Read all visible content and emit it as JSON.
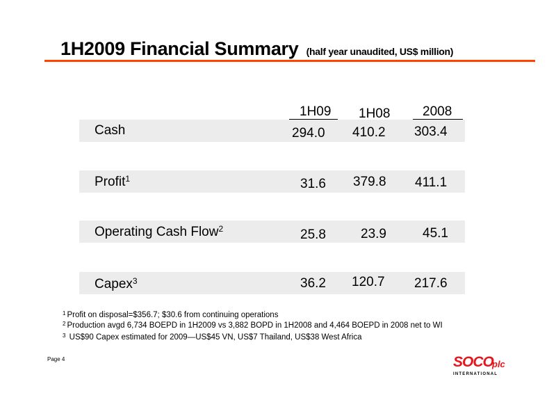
{
  "title": {
    "main": "1H2009 Financial Summary",
    "sub": "(half year unaudited, US$ million)"
  },
  "columns": [
    "1H09",
    "1H08",
    "2008"
  ],
  "rows": [
    {
      "label": "Cash",
      "sup": "",
      "values": [
        "294.0",
        "410.2",
        "303.4"
      ]
    },
    {
      "label": "Profit",
      "sup": "1",
      "values": [
        "31.6",
        "379.8",
        "411.1"
      ]
    },
    {
      "label": "Operating Cash Flow",
      "sup": "2",
      "values": [
        "25.8",
        "23.9",
        "45.1"
      ]
    },
    {
      "label": "Capex",
      "sup": "3",
      "values": [
        "36.2",
        "120.7",
        "217.6"
      ]
    }
  ],
  "footnotes": [
    {
      "mark": "1",
      "text": "Profit on disposal=$356.7; $30.6 from continuing operations"
    },
    {
      "mark": "2",
      "text": "Production avgd 6,734 BOEPD in 1H2009 vs 3,882 BOPD in 1H2008 and 4,464 BOEPD in 2008 net to WI"
    },
    {
      "mark": "3",
      "text": " US$90 Capex estimated for 2009—US$45 VN, US$7 Thailand, US$38 West Africa"
    }
  ],
  "page_label": "Page 4",
  "logo": {
    "brand": "SOCO",
    "suffix": "plc",
    "tagline": "INTERNATIONAL"
  },
  "colors": {
    "accent": "#ff4400",
    "band": "#ececec",
    "logo_red": "#e8141b"
  }
}
